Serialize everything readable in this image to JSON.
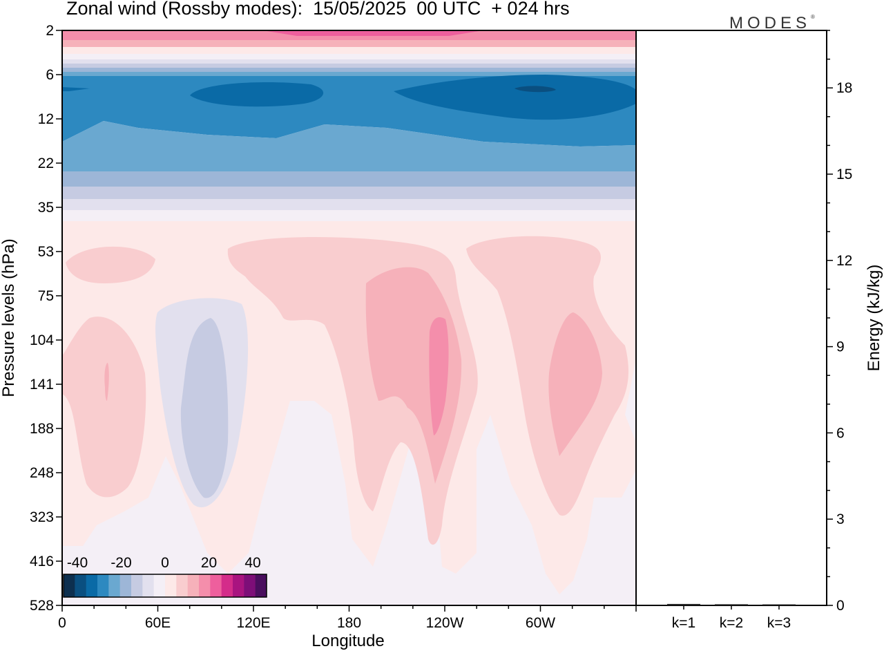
{
  "header": {
    "title": "Zonal wind (Rossby modes):  15/05/2025  00 UTC  + 024 hrs",
    "logo": "MODES",
    "logo_mark": "®"
  },
  "chart_data": [
    {
      "type": "heatmap",
      "title": "Zonal wind (Rossby modes):  15/05/2025  00 UTC  + 024 hrs",
      "xlabel": "Longitude",
      "ylabel": "Pressure levels (hPa)",
      "x_ticks": [
        "0",
        "60E",
        "120E",
        "180",
        "120W",
        "60W"
      ],
      "y_ticks": [
        "2",
        "6",
        "12",
        "22",
        "35",
        "53",
        "75",
        "104",
        "141",
        "188",
        "248",
        "323",
        "416",
        "528"
      ],
      "y_scale": "log (reversed)",
      "x_range_deg": [
        0,
        360
      ],
      "colorbar": {
        "labels": [
          "-40",
          "-20",
          "0",
          "20",
          "40"
        ],
        "colors": [
          "#0d2f4f",
          "#0a4f80",
          "#0a6aa6",
          "#2d89c0",
          "#6aa8d0",
          "#9db6d7",
          "#c6cbe2",
          "#e2e0ee",
          "#f4eff6",
          "#fde9e8",
          "#f9cdcf",
          "#f6b1ba",
          "#f48eab",
          "#ee5f9d",
          "#d42c8a",
          "#a91480",
          "#7d0e78",
          "#4a0e5e"
        ]
      },
      "fields": {
        "stratosphere": {
          "level_hPa": [
            2,
            3,
            4,
            5,
            6,
            8,
            12,
            16,
            22,
            28,
            35,
            45
          ],
          "zonal_wind_ms": [
            15,
            8,
            0,
            -10,
            -20,
            -30,
            -30,
            -25,
            -20,
            -12,
            -4,
            2
          ]
        },
        "troposphere_maxima": [
          {
            "lon": "40E",
            "levels_hPa": [
              60,
              280
            ],
            "peak_ms": 10
          },
          {
            "lon": "180",
            "levels_hPa": [
              50,
              250
            ],
            "peak_ms": 10
          },
          {
            "lon": "115W",
            "levels_hPa": [
              90,
              230
            ],
            "peak_ms": 25
          },
          {
            "lon": "60W",
            "levels_hPa": [
              100,
              210
            ],
            "peak_ms": 20
          }
        ],
        "troposphere_minima": [
          {
            "lon": "90E",
            "levels_hPa": [
              100,
              300
            ],
            "peak_ms": -5
          }
        ]
      }
    },
    {
      "type": "bar",
      "ylabel": "Energy (kJ/kg)",
      "categories": [
        "k=1",
        "k=2",
        "k=3"
      ],
      "values": [
        0.05,
        0.04,
        0.03
      ],
      "ylim": [
        0,
        20
      ],
      "y_ticks": [
        "0",
        "3",
        "6",
        "9",
        "12",
        "15",
        "18"
      ]
    }
  ]
}
